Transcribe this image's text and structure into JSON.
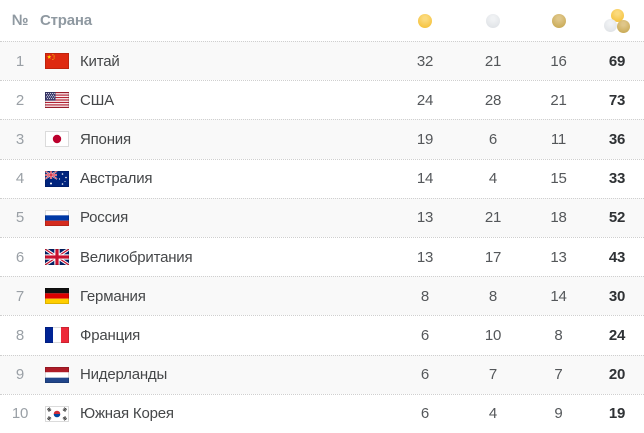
{
  "chart_data": {
    "type": "table",
    "columns": [
      "rank",
      "country",
      "gold",
      "silver",
      "bronze",
      "total"
    ],
    "header": {
      "rank_label": "№",
      "country_label": "Страна",
      "gold_icon": "gold-medal-icon",
      "silver_icon": "silver-medal-icon",
      "bronze_icon": "bronze-medal-icon",
      "total_icon": "total-medals-icon"
    },
    "rows": [
      {
        "rank": "1",
        "code": "cn",
        "country": "Китай",
        "gold": "32",
        "silver": "21",
        "bronze": "16",
        "total": "69"
      },
      {
        "rank": "2",
        "code": "us",
        "country": "США",
        "gold": "24",
        "silver": "28",
        "bronze": "21",
        "total": "73"
      },
      {
        "rank": "3",
        "code": "jp",
        "country": "Япония",
        "gold": "19",
        "silver": "6",
        "bronze": "11",
        "total": "36"
      },
      {
        "rank": "4",
        "code": "au",
        "country": "Австралия",
        "gold": "14",
        "silver": "4",
        "bronze": "15",
        "total": "33"
      },
      {
        "rank": "5",
        "code": "ru",
        "country": "Россия",
        "gold": "13",
        "silver": "21",
        "bronze": "18",
        "total": "52"
      },
      {
        "rank": "6",
        "code": "gb",
        "country": "Великобритания",
        "gold": "13",
        "silver": "17",
        "bronze": "13",
        "total": "43"
      },
      {
        "rank": "7",
        "code": "de",
        "country": "Германия",
        "gold": "8",
        "silver": "8",
        "bronze": "14",
        "total": "30"
      },
      {
        "rank": "8",
        "code": "fr",
        "country": "Франция",
        "gold": "6",
        "silver": "10",
        "bronze": "8",
        "total": "24"
      },
      {
        "rank": "9",
        "code": "nl",
        "country": "Нидерланды",
        "gold": "6",
        "silver": "7",
        "bronze": "7",
        "total": "20"
      },
      {
        "rank": "10",
        "code": "kr",
        "country": "Южная Корея",
        "gold": "6",
        "silver": "4",
        "bronze": "9",
        "total": "19"
      }
    ]
  },
  "colors": {
    "gold": "#f5c13a",
    "silver": "#dfe2e6",
    "bronze": "#c8a953",
    "stripe": "#f9f9f9",
    "divider": "#cfcfcf",
    "header_text": "#8f99a1",
    "rank_text": "#9aa0a6",
    "country_text": "#454749",
    "count_text": "#54575a",
    "total_text": "#2f3235"
  }
}
